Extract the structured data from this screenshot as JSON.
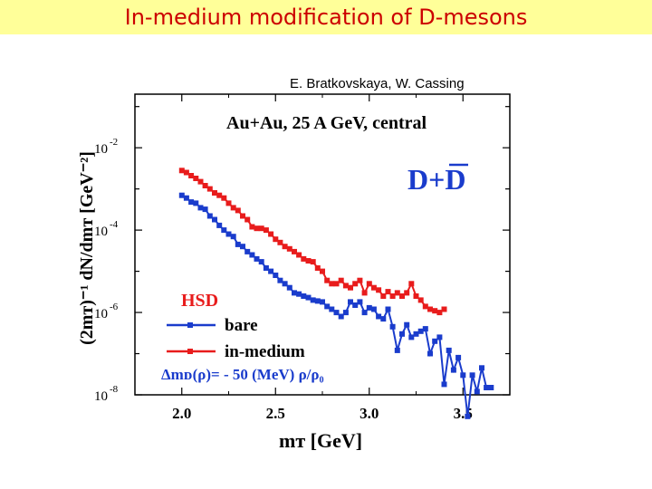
{
  "header": {
    "title": "In-medium modification of D-mesons"
  },
  "credit": "E. Bratkovskaya, W. Cassing",
  "colors": {
    "title_bg": "#ffff99",
    "title_text": "#cc0000",
    "bare": "#1a3ccc",
    "inmedium": "#e81c1c",
    "accent": "#1a3ccc"
  },
  "chart_data": {
    "type": "line",
    "title": "Au+Au,  25 A GeV, central",
    "particle_label": "D+D̄",
    "model_label": "HSD",
    "formula": "Δmᴅ(ρ)= - 50 (MeV) ρ/ρ₀",
    "xlabel": "mᴛ [GeV]",
    "ylabel": "(2mᴛ)⁻¹ dN/dmᴛ [GeV⁻²]",
    "xlim": [
      1.75,
      3.75
    ],
    "ylim": [
      1e-08,
      0.2
    ],
    "yscale": "log",
    "xticks": [
      "2.0",
      "2.5",
      "3.0",
      "3.5"
    ],
    "xtick_values": [
      2.0,
      2.5,
      3.0,
      3.5
    ],
    "yticks": [
      {
        "value": 0.01,
        "base": "10",
        "exp": "-2"
      },
      {
        "value": 0.0001,
        "base": "10",
        "exp": "-4"
      },
      {
        "value": 1e-06,
        "base": "10",
        "exp": "-6"
      },
      {
        "value": 1e-08,
        "base": "10",
        "exp": "-8"
      }
    ],
    "legend_position": "bottom-left",
    "series": [
      {
        "name": "bare",
        "color": "#1a3ccc",
        "x": [
          2.0,
          2.025,
          2.05,
          2.075,
          2.1,
          2.125,
          2.15,
          2.175,
          2.2,
          2.225,
          2.25,
          2.275,
          2.3,
          2.325,
          2.35,
          2.375,
          2.4,
          2.425,
          2.45,
          2.475,
          2.5,
          2.525,
          2.55,
          2.575,
          2.6,
          2.625,
          2.65,
          2.675,
          2.7,
          2.725,
          2.75,
          2.775,
          2.8,
          2.825,
          2.85,
          2.875,
          2.9,
          2.925,
          2.95,
          2.975,
          3.0,
          3.025,
          3.05,
          3.075,
          3.1,
          3.125,
          3.15,
          3.175,
          3.2,
          3.225,
          3.25,
          3.275,
          3.3,
          3.325,
          3.35,
          3.375,
          3.4,
          3.425,
          3.45,
          3.475,
          3.5,
          3.525,
          3.55,
          3.575,
          3.6,
          3.625,
          3.65
        ],
        "y": [
          0.0007,
          0.0006,
          0.00048,
          0.00045,
          0.00035,
          0.00032,
          0.00022,
          0.00018,
          0.00013,
          0.0001,
          8e-05,
          7e-05,
          4.5e-05,
          4e-05,
          3e-05,
          2.5e-05,
          2e-05,
          1.7e-05,
          1.2e-05,
          1e-05,
          8e-06,
          6e-06,
          5e-06,
          4e-06,
          3e-06,
          2.8e-06,
          2.5e-06,
          2.3e-06,
          2e-06,
          1.9e-06,
          1.8e-06,
          1.4e-06,
          1.2e-06,
          1e-06,
          8e-07,
          1e-06,
          1.8e-06,
          1.5e-06,
          1.8e-06,
          1e-06,
          1.3e-06,
          1.2e-06,
          8e-07,
          7e-07,
          1.2e-06,
          4.5e-07,
          1.2e-07,
          3e-07,
          5e-07,
          2.5e-07,
          3e-07,
          3.5e-07,
          4e-07,
          1e-07,
          2e-07,
          2.5e-07,
          1.8e-08,
          1.2e-07,
          4e-08,
          8e-08,
          3e-08,
          3e-09,
          3e-08,
          1.2e-08,
          4.5e-08,
          1.5e-08,
          1.5e-08
        ]
      },
      {
        "name": "in-medium",
        "color": "#e81c1c",
        "x": [
          2.0,
          2.025,
          2.05,
          2.075,
          2.1,
          2.125,
          2.15,
          2.175,
          2.2,
          2.225,
          2.25,
          2.275,
          2.3,
          2.325,
          2.35,
          2.375,
          2.4,
          2.425,
          2.45,
          2.475,
          2.5,
          2.525,
          2.55,
          2.575,
          2.6,
          2.625,
          2.65,
          2.675,
          2.7,
          2.725,
          2.75,
          2.775,
          2.8,
          2.825,
          2.85,
          2.875,
          2.9,
          2.925,
          2.95,
          2.975,
          3.0,
          3.025,
          3.05,
          3.075,
          3.1,
          3.125,
          3.15,
          3.175,
          3.2,
          3.225,
          3.25,
          3.275,
          3.3,
          3.325,
          3.35,
          3.375,
          3.4
        ],
        "y": [
          0.0028,
          0.0025,
          0.0021,
          0.0018,
          0.0015,
          0.0012,
          0.001,
          0.0008,
          0.0007,
          0.0006,
          0.00045,
          0.00035,
          0.0003,
          0.00022,
          0.00018,
          0.00012,
          0.00011,
          0.00011,
          0.0001,
          8e-05,
          6e-05,
          5e-05,
          4e-05,
          3.5e-05,
          3e-05,
          2.5e-05,
          2e-05,
          1.8e-05,
          1.7e-05,
          1.2e-05,
          1e-05,
          6e-06,
          5e-06,
          5e-06,
          6e-06,
          4.5e-06,
          4e-06,
          5e-06,
          6e-06,
          3e-06,
          5e-06,
          4e-06,
          3.5e-06,
          2.5e-06,
          3.2e-06,
          2.5e-06,
          3e-06,
          2.5e-06,
          3e-06,
          5e-06,
          2.5e-06,
          2e-06,
          1.4e-06,
          1.2e-06,
          1.1e-06,
          1e-06,
          1.2e-06
        ]
      }
    ]
  }
}
